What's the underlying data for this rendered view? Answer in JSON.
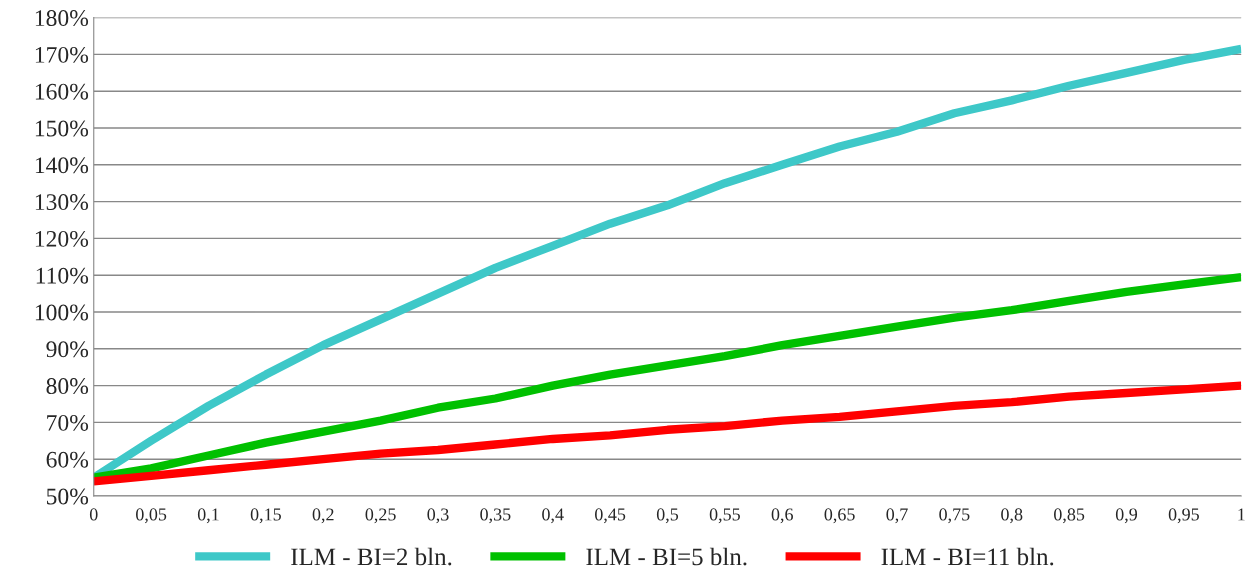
{
  "chart_data": {
    "type": "line",
    "x": [
      0,
      0.05,
      0.1,
      0.15,
      0.2,
      0.25,
      0.3,
      0.35,
      0.4,
      0.45,
      0.5,
      0.55,
      0.6,
      0.65,
      0.7,
      0.75,
      0.8,
      0.85,
      0.9,
      0.95,
      1
    ],
    "series": [
      {
        "name": "ILM - BI=2 bln.",
        "color": "#3ec8c8",
        "values": [
          55,
          65,
          74.5,
          83,
          91,
          98,
          105,
          112,
          118,
          124,
          129,
          135,
          140,
          145,
          149,
          154,
          157.5,
          161.5,
          165,
          168.5,
          171.5
        ]
      },
      {
        "name": "ILM - BI=5 bln.",
        "color": "#00c000",
        "values": [
          55,
          57.5,
          61,
          64.5,
          67.5,
          70.5,
          74,
          76.5,
          80,
          83,
          85.5,
          88,
          91,
          93.5,
          96,
          98.5,
          100.5,
          103,
          105.5,
          107.5,
          109.5
        ]
      },
      {
        "name": "ILM - BI=11 bln.",
        "color": "#ff0000",
        "values": [
          54,
          55.5,
          57,
          58.5,
          60,
          61.5,
          62.5,
          64,
          65.5,
          66.5,
          68,
          69,
          70.5,
          71.5,
          73,
          74.5,
          75.5,
          77,
          78,
          79,
          80
        ]
      }
    ],
    "xlim": [
      0,
      1
    ],
    "xticks": [
      0,
      {
        "value": 0.05,
        "label": "0,05"
      },
      {
        "value": 0.1,
        "label": "0,1"
      },
      {
        "value": 0.15,
        "label": "0,15"
      },
      {
        "value": 0.2,
        "label": "0,2"
      },
      {
        "value": 0.25,
        "label": "0,25"
      },
      {
        "value": 0.3,
        "label": "0,3"
      },
      {
        "value": 0.35,
        "label": "0,35"
      },
      {
        "value": 0.4,
        "label": "0,4"
      },
      {
        "value": 0.45,
        "label": "0,45"
      },
      {
        "value": 0.5,
        "label": "0,5"
      },
      {
        "value": 0.55,
        "label": "0,55"
      },
      {
        "value": 0.6,
        "label": "0,6"
      },
      {
        "value": 0.65,
        "label": "0,65"
      },
      {
        "value": 0.7,
        "label": "0,7"
      },
      {
        "value": 0.75,
        "label": "0,75"
      },
      {
        "value": 0.8,
        "label": "0,8"
      },
      {
        "value": 0.85,
        "label": "0,85"
      },
      {
        "value": 0.9,
        "label": "0,9"
      },
      {
        "value": 0.95,
        "label": "0,95"
      },
      1
    ],
    "ylim": [
      50,
      180
    ],
    "yticks": [
      {
        "value": 50,
        "label": "50%"
      },
      {
        "value": 60,
        "label": "60%"
      },
      {
        "value": 70,
        "label": "70%"
      },
      {
        "value": 80,
        "label": "80%"
      },
      {
        "value": 90,
        "label": "90%"
      },
      {
        "value": 100,
        "label": "100%"
      },
      {
        "value": 110,
        "label": "110%"
      },
      {
        "value": 120,
        "label": "120%"
      },
      {
        "value": 130,
        "label": "130%"
      },
      {
        "value": 140,
        "label": "140%"
      },
      {
        "value": 150,
        "label": "150%"
      },
      {
        "value": 160,
        "label": "160%"
      },
      {
        "value": 170,
        "label": "170%"
      },
      {
        "value": 180,
        "label": "180%"
      }
    ],
    "grid": "y",
    "legend": "bottom",
    "line_style": "solid",
    "marker": "none"
  }
}
